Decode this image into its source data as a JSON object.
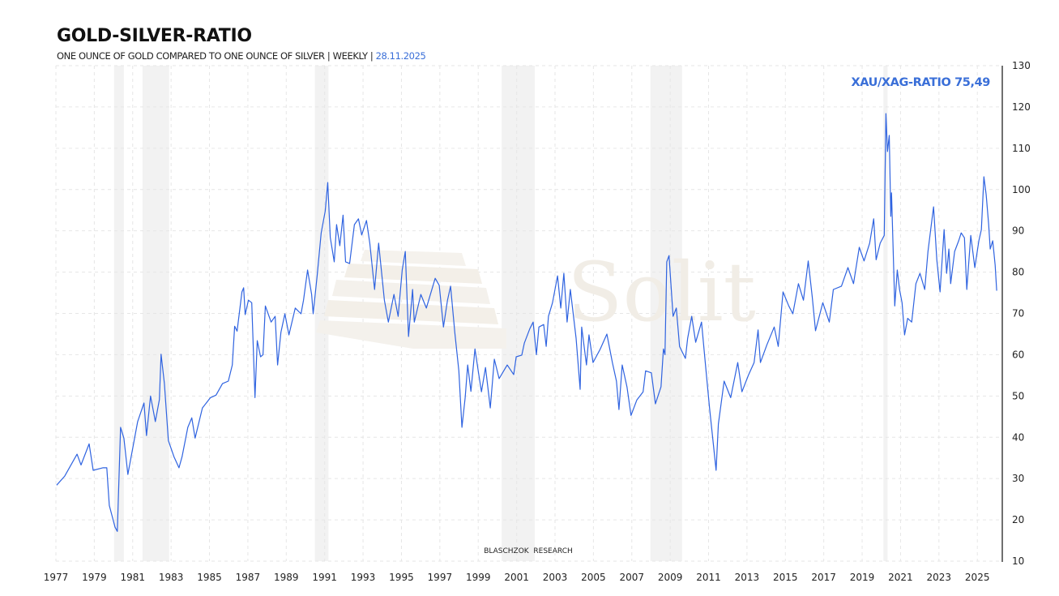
{
  "header": {
    "title": "GOLD-SILVER-RATIO",
    "subtitle": "ONE OUNCE OF GOLD COMPARED TO ONE OUNCE OF SILVER | WEEKLY | ",
    "date": "28.11.2025"
  },
  "watermark": {
    "logo_text": "Solit",
    "credit": "BLASCHZOK  RESEARCH"
  },
  "colors": {
    "line": "#2f63e0",
    "accent_label": "#3a6fd8",
    "recession_band": "#f2f2f2",
    "grid": "#e6e6e6"
  },
  "chart_data": {
    "type": "line",
    "title": "GOLD-SILVER-RATIO",
    "xlabel": "",
    "ylabel": "",
    "xlim": [
      1977,
      2026.3
    ],
    "ylim": [
      10,
      130
    ],
    "grid": true,
    "y_axis_side": "right",
    "x_ticks": [
      "1977",
      "1979",
      "1981",
      "1983",
      "1985",
      "1987",
      "1989",
      "1991",
      "1993",
      "1995",
      "1997",
      "1999",
      "2001",
      "2003",
      "2005",
      "2007",
      "2009",
      "2011",
      "2013",
      "2015",
      "2017",
      "2019",
      "2021",
      "2023",
      "2025"
    ],
    "y_ticks": [
      10,
      20,
      30,
      40,
      50,
      60,
      70,
      80,
      90,
      100,
      110,
      120,
      130
    ],
    "annotation": "XAU/XAG-RATIO 75,49",
    "last_value": 75.49,
    "shaded_periods": [
      [
        1980.03,
        1980.54
      ],
      [
        1981.51,
        1982.9
      ],
      [
        1990.49,
        1991.2
      ],
      [
        2000.22,
        2001.95
      ],
      [
        2007.97,
        2009.62
      ],
      [
        2020.11,
        2020.32
      ]
    ],
    "series": [
      {
        "points": [
          [
            1977.04,
            28.4
          ],
          [
            1977.46,
            30.6
          ],
          [
            1978.1,
            35.9
          ],
          [
            1978.31,
            33.3
          ],
          [
            1978.73,
            38.4
          ],
          [
            1978.94,
            32
          ],
          [
            1979.44,
            32.6
          ],
          [
            1979.65,
            32.6
          ],
          [
            1979.78,
            23.5
          ],
          [
            1980.08,
            18.2
          ],
          [
            1980.2,
            17.2
          ],
          [
            1980.37,
            42.4
          ],
          [
            1980.54,
            39.8
          ],
          [
            1980.75,
            31
          ],
          [
            1981.26,
            43.8
          ],
          [
            1981.59,
            48.3
          ],
          [
            1981.72,
            40.4
          ],
          [
            1981.93,
            50
          ],
          [
            1982.18,
            43.8
          ],
          [
            1982.39,
            49.1
          ],
          [
            1982.48,
            60.1
          ],
          [
            1982.65,
            53
          ],
          [
            1982.86,
            39.2
          ],
          [
            1983.15,
            35.3
          ],
          [
            1983.41,
            32.6
          ],
          [
            1983.57,
            35.3
          ],
          [
            1983.87,
            42.4
          ],
          [
            1984.08,
            44.7
          ],
          [
            1984.25,
            39.8
          ],
          [
            1984.63,
            47.1
          ],
          [
            1985.05,
            49.6
          ],
          [
            1985.34,
            50.2
          ],
          [
            1985.68,
            53
          ],
          [
            1985.98,
            53.6
          ],
          [
            1986.19,
            57.5
          ],
          [
            1986.31,
            66.9
          ],
          [
            1986.44,
            65.7
          ],
          [
            1986.69,
            75.2
          ],
          [
            1986.78,
            76.2
          ],
          [
            1986.86,
            69.7
          ],
          [
            1987.03,
            73.2
          ],
          [
            1987.2,
            72.6
          ],
          [
            1987.37,
            49.6
          ],
          [
            1987.49,
            63.4
          ],
          [
            1987.66,
            59.5
          ],
          [
            1987.79,
            60
          ],
          [
            1987.91,
            71.8
          ],
          [
            1988.21,
            67.9
          ],
          [
            1988.42,
            69.3
          ],
          [
            1988.55,
            57.5
          ],
          [
            1988.72,
            65.4
          ],
          [
            1988.93,
            69.9
          ],
          [
            1989.14,
            64.8
          ],
          [
            1989.47,
            71.3
          ],
          [
            1989.77,
            69.9
          ],
          [
            1989.9,
            73.2
          ],
          [
            1990.11,
            80.5
          ],
          [
            1990.32,
            74.6
          ],
          [
            1990.4,
            69.9
          ],
          [
            1990.61,
            79.1
          ],
          [
            1990.82,
            89.5
          ],
          [
            1991.03,
            94.8
          ],
          [
            1991.16,
            101.7
          ],
          [
            1991.29,
            88.4
          ],
          [
            1991.5,
            82.5
          ],
          [
            1991.62,
            91.5
          ],
          [
            1991.79,
            86.4
          ],
          [
            1991.96,
            93.8
          ],
          [
            1992.09,
            82.5
          ],
          [
            1992.3,
            82.1
          ],
          [
            1992.55,
            91.5
          ],
          [
            1992.76,
            92.9
          ],
          [
            1992.93,
            89
          ],
          [
            1993.18,
            92.5
          ],
          [
            1993.35,
            87
          ],
          [
            1993.6,
            75.8
          ],
          [
            1993.81,
            87
          ],
          [
            1994.11,
            73.2
          ],
          [
            1994.32,
            67.9
          ],
          [
            1994.61,
            74.6
          ],
          [
            1994.83,
            69.3
          ],
          [
            1995.04,
            80.5
          ],
          [
            1995.2,
            85
          ],
          [
            1995.37,
            64.4
          ],
          [
            1995.58,
            75.8
          ],
          [
            1995.67,
            67.9
          ],
          [
            1996.01,
            74.6
          ],
          [
            1996.3,
            71.3
          ],
          [
            1996.76,
            78.5
          ],
          [
            1996.97,
            76.8
          ],
          [
            1997.19,
            66.7
          ],
          [
            1997.4,
            73.2
          ],
          [
            1997.56,
            76.6
          ],
          [
            1997.78,
            65.4
          ],
          [
            1997.99,
            56.1
          ],
          [
            1998.15,
            42.4
          ],
          [
            1998.32,
            49.6
          ],
          [
            1998.45,
            57.5
          ],
          [
            1998.62,
            51.1
          ],
          [
            1998.83,
            61.4
          ],
          [
            1999.0,
            56.1
          ],
          [
            1999.17,
            51
          ],
          [
            1999.38,
            56.9
          ],
          [
            1999.63,
            47.1
          ],
          [
            1999.84,
            58.9
          ],
          [
            2000.09,
            54.2
          ],
          [
            2000.51,
            57.5
          ],
          [
            2000.85,
            55.2
          ],
          [
            2000.98,
            59.5
          ],
          [
            2001.27,
            59.9
          ],
          [
            2001.4,
            62.8
          ],
          [
            2001.69,
            66.3
          ],
          [
            2001.86,
            67.9
          ],
          [
            2002.03,
            60
          ],
          [
            2002.16,
            66.7
          ],
          [
            2002.41,
            67.3
          ],
          [
            2002.54,
            62
          ],
          [
            2002.66,
            69.3
          ],
          [
            2002.87,
            72.6
          ],
          [
            2003.13,
            79.1
          ],
          [
            2003.3,
            71.3
          ],
          [
            2003.46,
            79.7
          ],
          [
            2003.63,
            67.9
          ],
          [
            2003.8,
            75.8
          ],
          [
            2004.1,
            64
          ],
          [
            2004.31,
            51.6
          ],
          [
            2004.39,
            66.7
          ],
          [
            2004.64,
            57.5
          ],
          [
            2004.77,
            64.8
          ],
          [
            2004.98,
            58.1
          ],
          [
            2005.36,
            61.4
          ],
          [
            2005.7,
            65
          ],
          [
            2005.99,
            58.1
          ],
          [
            2006.2,
            53.6
          ],
          [
            2006.33,
            46.7
          ],
          [
            2006.5,
            57.5
          ],
          [
            2006.75,
            52.2
          ],
          [
            2006.96,
            45.3
          ],
          [
            2007.26,
            49
          ],
          [
            2007.59,
            51
          ],
          [
            2007.72,
            56.1
          ],
          [
            2008.02,
            55.6
          ],
          [
            2008.23,
            48.1
          ],
          [
            2008.52,
            52.2
          ],
          [
            2008.65,
            61.4
          ],
          [
            2008.73,
            60
          ],
          [
            2008.82,
            82.5
          ],
          [
            2008.94,
            84
          ],
          [
            2009.15,
            69.3
          ],
          [
            2009.32,
            71.3
          ],
          [
            2009.49,
            62
          ],
          [
            2009.79,
            59.1
          ],
          [
            2009.91,
            64
          ],
          [
            2010.12,
            69.3
          ],
          [
            2010.33,
            63
          ],
          [
            2010.63,
            67.9
          ],
          [
            2010.84,
            57.5
          ],
          [
            2011.05,
            47.1
          ],
          [
            2011.39,
            32
          ],
          [
            2011.51,
            43.2
          ],
          [
            2011.81,
            53.6
          ],
          [
            2012.15,
            49.6
          ],
          [
            2012.52,
            58.1
          ],
          [
            2012.74,
            51
          ],
          [
            2013.07,
            55
          ],
          [
            2013.37,
            58.1
          ],
          [
            2013.58,
            66
          ],
          [
            2013.7,
            58.1
          ],
          [
            2014.04,
            62.4
          ],
          [
            2014.42,
            66.7
          ],
          [
            2014.63,
            62
          ],
          [
            2014.88,
            75.2
          ],
          [
            2015.18,
            71.8
          ],
          [
            2015.39,
            69.9
          ],
          [
            2015.68,
            77.2
          ],
          [
            2015.94,
            73.2
          ],
          [
            2016.19,
            82.7
          ],
          [
            2016.4,
            73.9
          ],
          [
            2016.57,
            65.8
          ],
          [
            2016.95,
            72.6
          ],
          [
            2017.29,
            67.9
          ],
          [
            2017.5,
            75.8
          ],
          [
            2017.92,
            76.6
          ],
          [
            2018.26,
            81.1
          ],
          [
            2018.55,
            77.2
          ],
          [
            2018.85,
            86
          ],
          [
            2019.1,
            82.7
          ],
          [
            2019.39,
            87
          ],
          [
            2019.6,
            92.9
          ],
          [
            2019.73,
            83
          ],
          [
            2019.94,
            87
          ],
          [
            2020.15,
            88.9
          ],
          [
            2020.24,
            118.4
          ],
          [
            2020.32,
            109.2
          ],
          [
            2020.41,
            113.1
          ],
          [
            2020.49,
            93.5
          ],
          [
            2020.53,
            99.2
          ],
          [
            2020.7,
            71.8
          ],
          [
            2020.83,
            80.5
          ],
          [
            2020.95,
            75.8
          ],
          [
            2021.08,
            72.6
          ],
          [
            2021.21,
            64.8
          ],
          [
            2021.37,
            68.8
          ],
          [
            2021.58,
            67.9
          ],
          [
            2021.8,
            77.2
          ],
          [
            2022.01,
            79.7
          ],
          [
            2022.26,
            75.8
          ],
          [
            2022.43,
            85
          ],
          [
            2022.64,
            92.9
          ],
          [
            2022.72,
            95.8
          ],
          [
            2022.89,
            83
          ],
          [
            2023.06,
            75.2
          ],
          [
            2023.27,
            90.3
          ],
          [
            2023.4,
            79.7
          ],
          [
            2023.52,
            85.6
          ],
          [
            2023.61,
            77.2
          ],
          [
            2023.82,
            85
          ],
          [
            2024.03,
            87.6
          ],
          [
            2024.16,
            89.5
          ],
          [
            2024.33,
            88.3
          ],
          [
            2024.45,
            75.8
          ],
          [
            2024.66,
            88.9
          ],
          [
            2024.87,
            81.1
          ],
          [
            2025.08,
            87.6
          ],
          [
            2025.21,
            90.3
          ],
          [
            2025.34,
            103.1
          ],
          [
            2025.46,
            98.8
          ],
          [
            2025.59,
            91.5
          ],
          [
            2025.67,
            85.6
          ],
          [
            2025.8,
            87.6
          ],
          [
            2025.93,
            81.7
          ],
          [
            2026.01,
            75.49
          ]
        ]
      }
    ]
  }
}
